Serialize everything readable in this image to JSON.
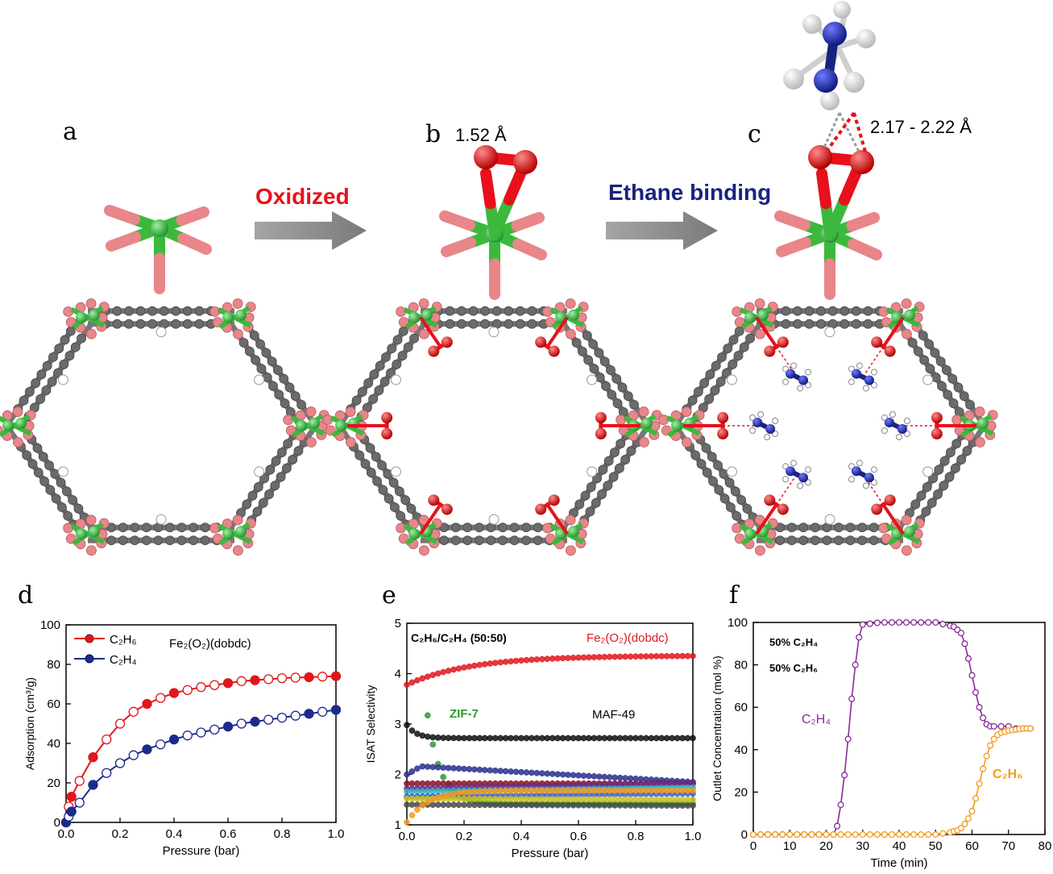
{
  "panels": {
    "a": "a",
    "b": "b",
    "c": "c",
    "d": "d",
    "e": "e",
    "f": "f"
  },
  "top": {
    "arrow1_label": "Oxidized",
    "arrow2_label": "Ethane binding",
    "bond_b": "1.52 Å",
    "bond_c": "2.17 - 2.22 Å"
  },
  "colors": {
    "metal": "#3cb93c",
    "oxygen_link": "#e8868a",
    "o2": "#e8101a",
    "carbon": "#6b6b6b",
    "hydrogen": "#ffffff",
    "ethane_c": "#1a237e",
    "oxidized_text": "#e8101a",
    "binding_text": "#1a237e",
    "arrow": "#8a8a8a"
  },
  "chart_data": [
    {
      "id": "d",
      "type": "line",
      "xlabel": "Pressure (bar)",
      "ylabel": "Adsorption (cm³/g)",
      "xlim": [
        0,
        1.0
      ],
      "ylim": [
        0,
        100
      ],
      "xticks": [
        "0.0",
        "0.2",
        "0.4",
        "0.6",
        "0.8",
        "1.0"
      ],
      "yticks": [
        "0",
        "20",
        "40",
        "60",
        "80",
        "100"
      ],
      "annotation": "Fe₂(O₂)(dobdc)",
      "legend": [
        "C₂H₆",
        "C₂H₄"
      ],
      "legend_position": "top-left",
      "series": [
        {
          "name": "C₂H₆",
          "color": "#e0161c",
          "x": [
            0,
            0.01,
            0.02,
            0.05,
            0.1,
            0.15,
            0.2,
            0.25,
            0.3,
            0.35,
            0.4,
            0.45,
            0.5,
            0.55,
            0.6,
            0.65,
            0.7,
            0.75,
            0.8,
            0.85,
            0.9,
            0.95,
            1.0
          ],
          "y": [
            0,
            8,
            13,
            21,
            33,
            42,
            50,
            56,
            60,
            63,
            65.5,
            67,
            68.5,
            69.5,
            70.5,
            71.5,
            72,
            72.5,
            73,
            73.3,
            73.5,
            73.8,
            74
          ]
        },
        {
          "name": "C₂H₄",
          "color": "#1c2a8c",
          "x": [
            0,
            0.01,
            0.02,
            0.05,
            0.1,
            0.15,
            0.2,
            0.25,
            0.3,
            0.35,
            0.4,
            0.45,
            0.5,
            0.55,
            0.6,
            0.65,
            0.7,
            0.75,
            0.8,
            0.85,
            0.9,
            0.95,
            1.0
          ],
          "y": [
            0,
            3,
            5.5,
            10,
            19,
            25,
            30,
            34,
            37,
            39.5,
            42,
            44,
            45.5,
            47,
            48.5,
            50,
            51,
            52,
            53,
            54,
            55,
            56,
            57
          ]
        }
      ]
    },
    {
      "id": "e",
      "type": "line",
      "xlabel": "Pressure (bar)",
      "ylabel": "ISAT Selectivity",
      "xlim": [
        0,
        1.0
      ],
      "ylim": [
        1,
        5
      ],
      "xticks": [
        "0.0",
        "0.2",
        "0.4",
        "0.6",
        "0.8",
        "1.0"
      ],
      "yticks": [
        "1",
        "2",
        "3",
        "4",
        "5"
      ],
      "annotation": "C₂H₆/C₂H₄ (50:50)",
      "labels": {
        "fe": "Fe₂(O₂)(dobdc)",
        "zif": "ZIF-7",
        "maf": "MAF-49"
      },
      "series": [
        {
          "name": "Fe₂(O₂)(dobdc)",
          "color": "#e0161c",
          "start": 3.78,
          "end": 4.35,
          "mode": "rise"
        },
        {
          "name": "MAF-49",
          "color": "#111111",
          "start": 2.98,
          "end": 2.72,
          "mode": "fall"
        },
        {
          "name": "ZIF-7",
          "color": "#2e9b2e",
          "start": 3.28,
          "end": 1.42,
          "mode": "zif"
        },
        {
          "color": "#2a2f8f",
          "start": 2.0,
          "peak": 2.16,
          "end": 1.85,
          "mode": "hump"
        },
        {
          "color": "#8b0f22",
          "start": 1.82,
          "end": 1.82,
          "mode": "flat"
        },
        {
          "color": "#6a2d8f",
          "start": 1.72,
          "end": 1.82,
          "mode": "flat"
        },
        {
          "color": "#2fb5c0",
          "start": 1.66,
          "end": 1.74,
          "mode": "flat"
        },
        {
          "color": "#3d5fd6",
          "start": 1.56,
          "end": 1.62,
          "mode": "flat"
        },
        {
          "color": "#c9c21a",
          "start": 1.52,
          "end": 1.5,
          "mode": "flat"
        },
        {
          "color": "#4a4a4a",
          "start": 1.4,
          "end": 1.38,
          "mode": "flat"
        },
        {
          "color": "#f39a1d",
          "start": 1.05,
          "end": 1.68,
          "mode": "orise"
        }
      ]
    },
    {
      "id": "f",
      "type": "line",
      "xlabel": "Time (min)",
      "ylabel": "Outlet Concentration (mol %)",
      "xlim": [
        0,
        80
      ],
      "ylim": [
        0,
        100
      ],
      "xticks": [
        "0",
        "10",
        "20",
        "30",
        "40",
        "50",
        "60",
        "70",
        "80"
      ],
      "yticks": [
        "0",
        "20",
        "40",
        "60",
        "80",
        "100"
      ],
      "annotation": [
        "50% C₂H₄",
        "50% C₂H₆"
      ],
      "series": [
        {
          "name": "C₂H₄",
          "color": "#8a2a9a",
          "x": [
            0,
            22,
            23,
            24,
            25,
            26,
            27,
            28,
            29,
            30,
            35,
            40,
            45,
            50,
            55,
            57,
            58,
            59,
            60,
            61,
            62,
            63,
            64,
            65,
            66,
            68,
            70,
            72,
            74,
            76
          ],
          "y": [
            0,
            0,
            4,
            14,
            28,
            45,
            64,
            80,
            93,
            99,
            100,
            100,
            100,
            100,
            98,
            95,
            90,
            83,
            75,
            67,
            60,
            55,
            52,
            51,
            51,
            51,
            51,
            50,
            50,
            50
          ]
        },
        {
          "name": "C₂H₆",
          "color": "#f39a1d",
          "x": [
            0,
            50,
            52,
            54,
            56,
            57,
            58,
            59,
            60,
            61,
            62,
            63,
            64,
            65,
            66,
            67,
            68,
            70,
            72,
            74,
            76
          ],
          "y": [
            0,
            0,
            0.5,
            1,
            2,
            3,
            5,
            7.5,
            11,
            17,
            24,
            31,
            37,
            42,
            45,
            47,
            48,
            49,
            49.5,
            50,
            50
          ]
        }
      ]
    }
  ]
}
